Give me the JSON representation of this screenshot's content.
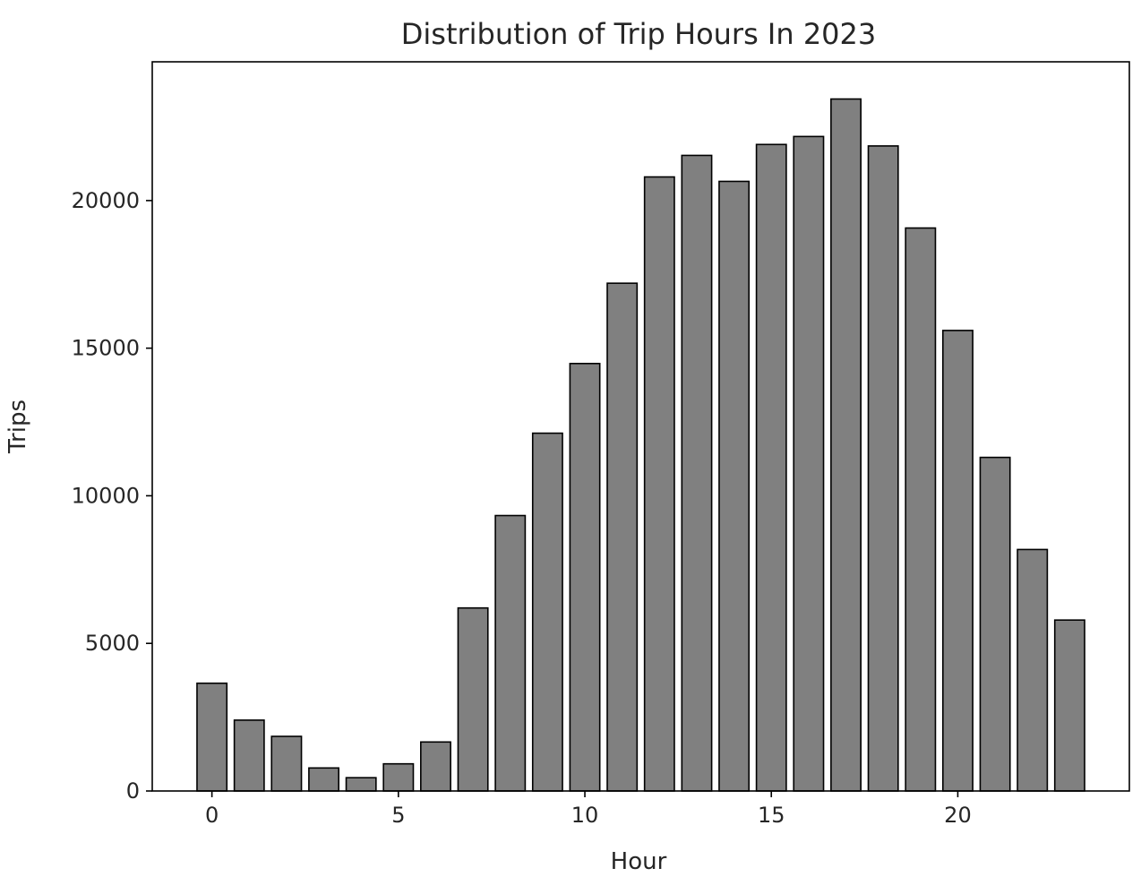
{
  "chart_data": {
    "type": "bar",
    "title": "Distribution of Trip Hours In 2023",
    "xlabel": "Hour",
    "ylabel": "Trips",
    "categories": [
      0,
      1,
      2,
      3,
      4,
      5,
      6,
      7,
      8,
      9,
      10,
      11,
      12,
      13,
      14,
      15,
      16,
      17,
      18,
      19,
      20,
      21,
      22,
      23
    ],
    "values": [
      3650,
      2400,
      1850,
      780,
      450,
      920,
      1660,
      6200,
      9330,
      12120,
      14480,
      17200,
      20800,
      21530,
      20650,
      21900,
      22170,
      23440,
      21850,
      19070,
      15600,
      11300,
      8180,
      5790
    ],
    "xlim": [
      -1.6,
      24.6
    ],
    "ylim": [
      0,
      24700
    ],
    "xticks": [
      0,
      5,
      10,
      15,
      20
    ],
    "yticks": [
      0,
      5000,
      10000,
      15000,
      20000
    ],
    "bar_color": "#808080",
    "edge_color": "#000000",
    "grid": false,
    "legend": "none"
  }
}
